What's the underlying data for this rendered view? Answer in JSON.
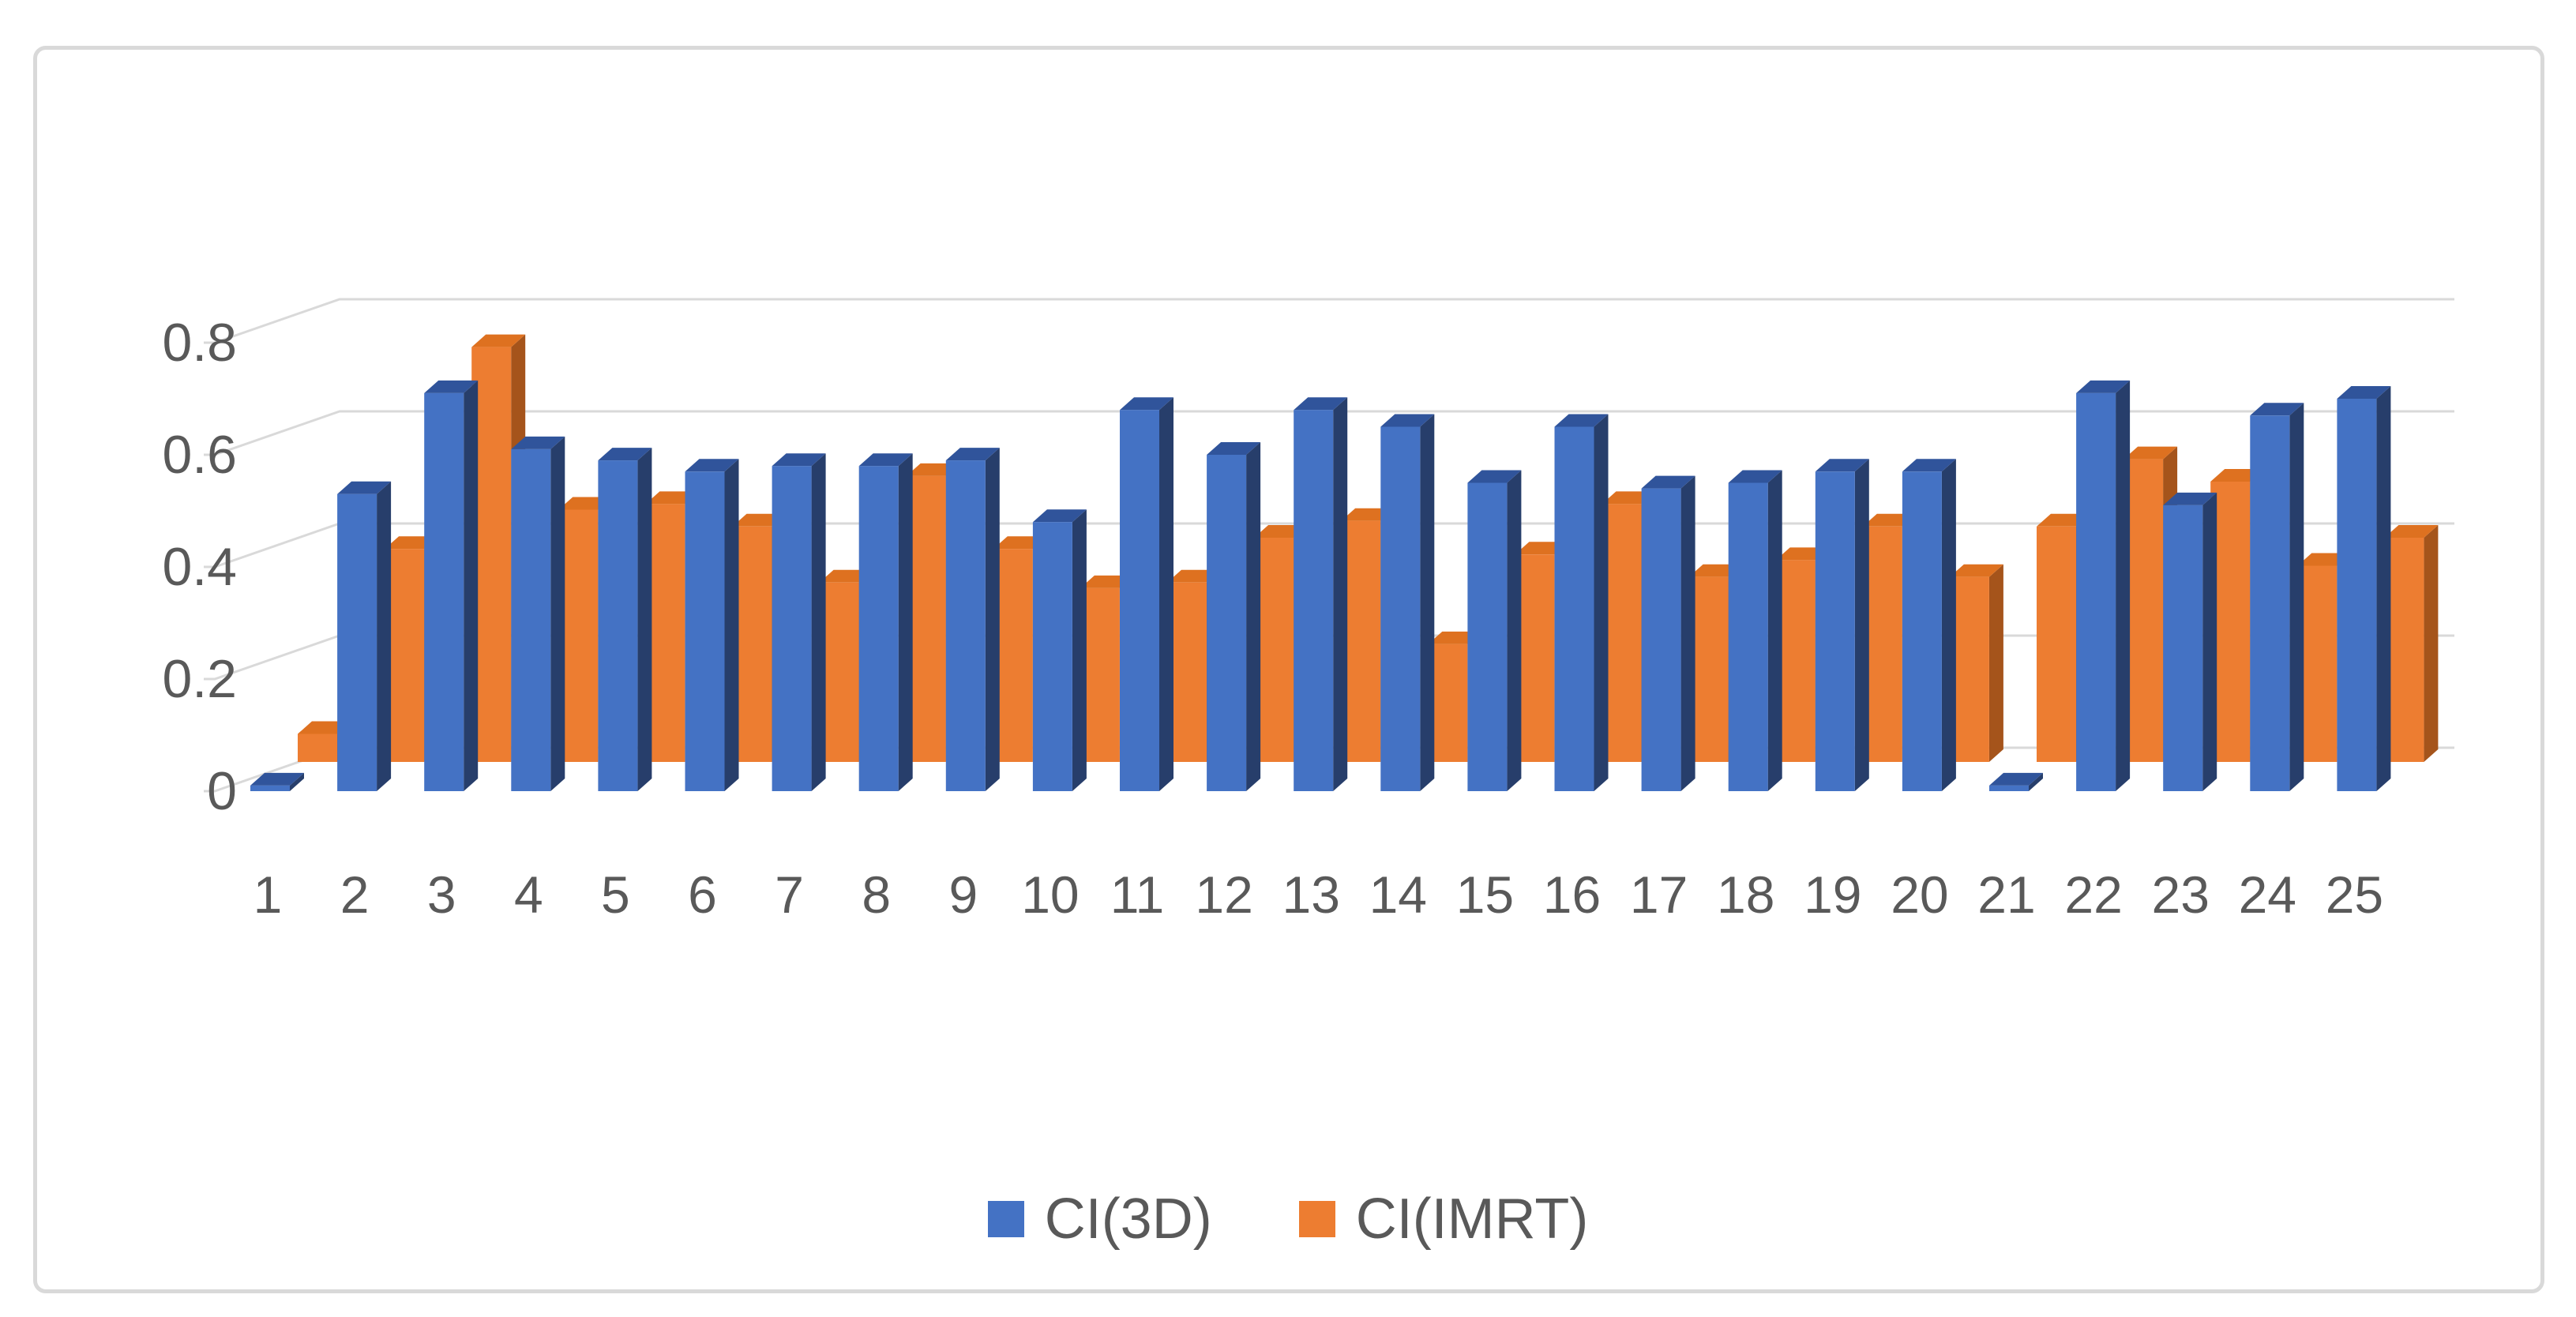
{
  "figure": {
    "background_color": "#FFFFFF",
    "frame_border_color": "#D9D9D9",
    "text_color": "#595959",
    "gridline_color": "#D9D9D9"
  },
  "chart_data": {
    "type": "bar",
    "variant": "3d-clustered-column",
    "title": "",
    "xlabel": "",
    "ylabel": "",
    "grid": "horizontal",
    "legend_position": "bottom",
    "categories": [
      "1",
      "2",
      "3",
      "4",
      "5",
      "6",
      "7",
      "8",
      "9",
      "10",
      "11",
      "12",
      "13",
      "14",
      "15",
      "16",
      "17",
      "18",
      "19",
      "20",
      "21",
      "22",
      "23",
      "24",
      "25"
    ],
    "y_axis": {
      "min": 0,
      "max": 0.8,
      "tick_values": [
        0,
        0.2,
        0.4,
        0.6,
        0.8
      ],
      "tick_labels": [
        "0",
        "0.2",
        "0.4",
        "0.6",
        "0.8"
      ]
    },
    "series": [
      {
        "name": "CI(3D)",
        "color": "#4472C4",
        "color_top": "#30549B",
        "color_side": "#273E6B",
        "values": [
          0.01,
          0.53,
          0.71,
          0.61,
          0.59,
          0.57,
          0.58,
          0.58,
          0.59,
          0.48,
          0.68,
          0.6,
          0.68,
          0.65,
          0.55,
          0.65,
          0.54,
          0.55,
          0.57,
          0.57,
          0.01,
          0.71,
          0.51,
          0.67,
          0.7
        ]
      },
      {
        "name": "CI(IMRT)",
        "color": "#ED7D31",
        "color_top": "#DE7120",
        "color_side": "#A5541B",
        "values": [
          0.05,
          0.38,
          0.74,
          0.45,
          0.46,
          0.42,
          0.32,
          0.51,
          0.38,
          0.31,
          0.32,
          0.4,
          0.43,
          0.21,
          0.37,
          0.46,
          0.33,
          0.36,
          0.42,
          0.33,
          0.42,
          0.54,
          0.5,
          0.35,
          0.4
        ]
      }
    ]
  }
}
